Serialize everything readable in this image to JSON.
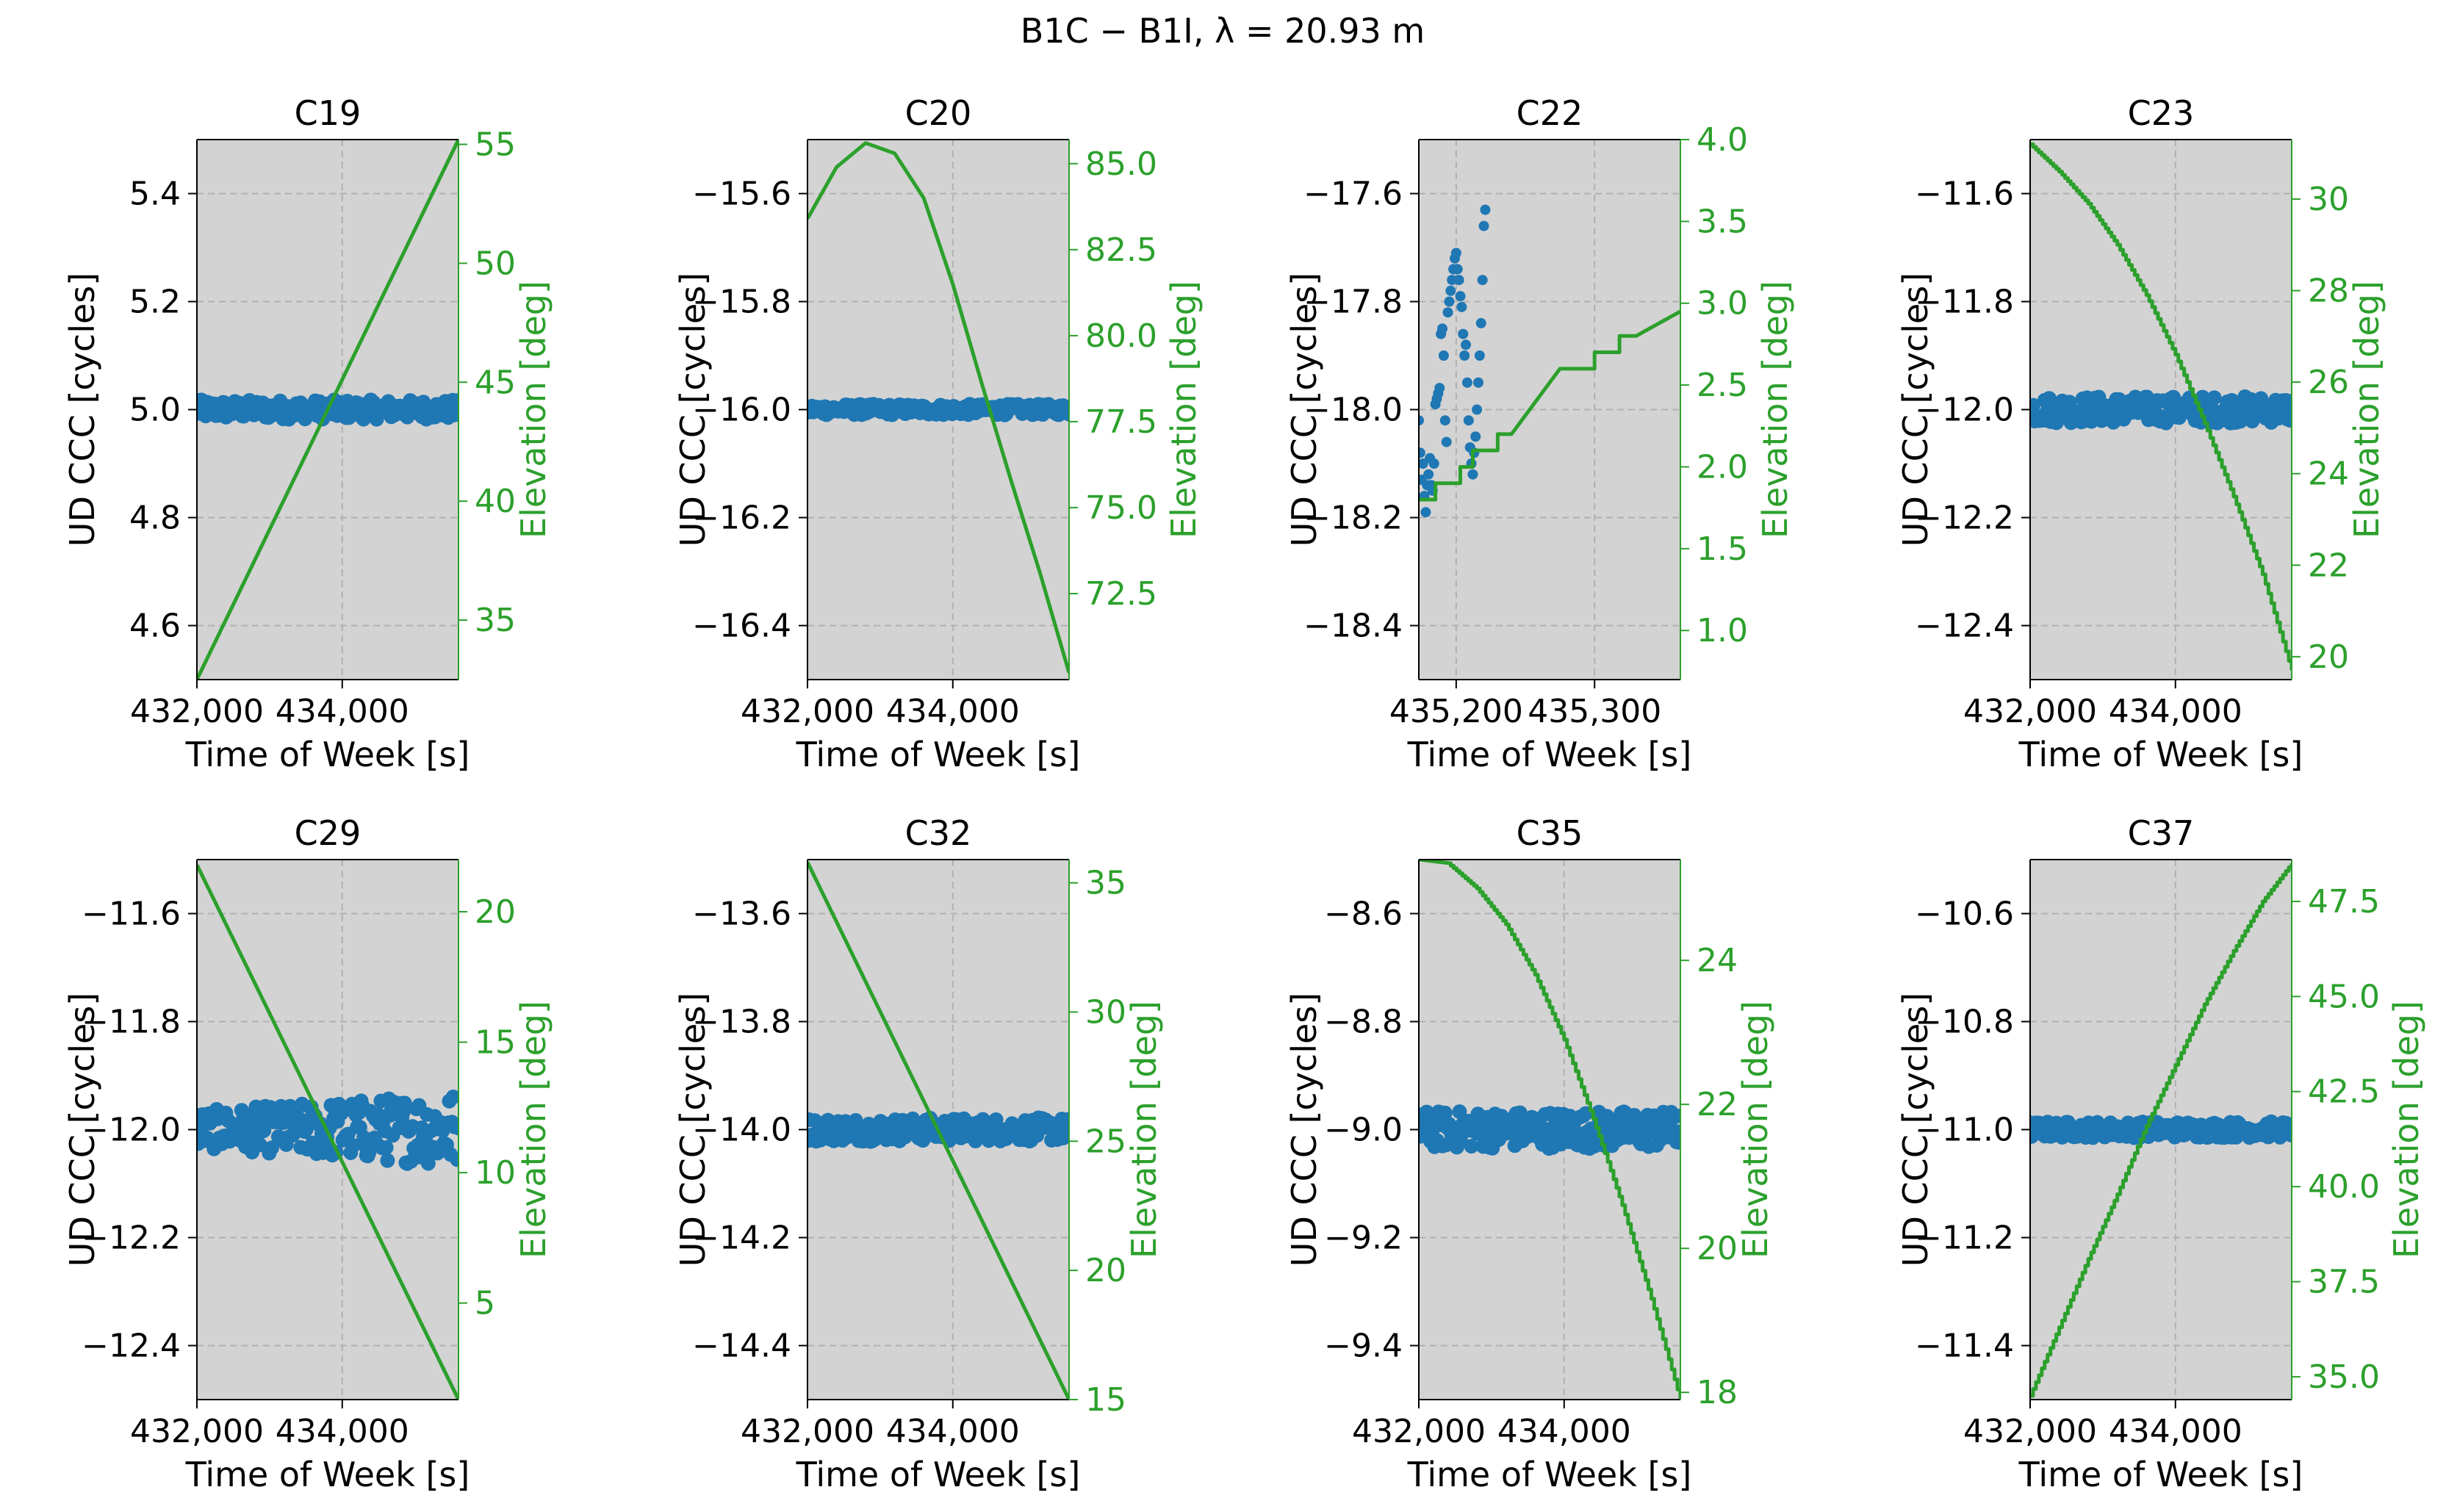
{
  "figure": {
    "title": "B1C − B1I, λ = 20.93 m",
    "colors": {
      "panel_bg": "#d3d3d3",
      "ccc": "#1f77b4",
      "elevation": "#2ca02c",
      "grid": "#b0b0b0",
      "axis_text": "#000000"
    }
  },
  "chart_data": [
    {
      "type": "scatter+line",
      "title": "C19",
      "xlabel": "Time of Week [s]",
      "ylabel": "UD CCC [cycles]",
      "y2label": "Elevation [deg]",
      "xlim": [
        432000,
        435600
      ],
      "xticks": [
        432000,
        434000
      ],
      "xtick_labels": [
        "432,000",
        "434,000"
      ],
      "ylim": [
        4.5,
        5.5
      ],
      "yticks": [
        4.6,
        4.8,
        5.0,
        5.2,
        5.4
      ],
      "ytick_labels": [
        "4.6",
        "4.8",
        "5.0",
        "5.2",
        "5.4"
      ],
      "y2lim": [
        32.5,
        55.2
      ],
      "y2ticks": [
        35,
        40,
        45,
        50,
        55
      ],
      "y2tick_labels": [
        "35",
        "40",
        "45",
        "50",
        "55"
      ],
      "ccc": {
        "center": 5.0,
        "amp": 0.018,
        "n": 180,
        "mode": "band"
      },
      "elevation": {
        "points": [
          [
            432000,
            32.5
          ],
          [
            435600,
            55.2
          ]
        ],
        "step": false
      }
    },
    {
      "type": "scatter+line",
      "title": "C20",
      "xlabel": "Time of Week [s]",
      "ylabel": "UD CCC [cycles]",
      "y2label": "Elevation [deg]",
      "xlim": [
        432000,
        435600
      ],
      "xticks": [
        432000,
        434000
      ],
      "xtick_labels": [
        "432,000",
        "434,000"
      ],
      "ylim": [
        -16.5,
        -15.5
      ],
      "yticks": [
        -16.4,
        -16.2,
        -16.0,
        -15.8,
        -15.6
      ],
      "ytick_labels": [
        "−16.4",
        "−16.2",
        "−16.0",
        "−15.8",
        "−15.6"
      ],
      "y2lim": [
        70.0,
        85.7
      ],
      "y2ticks": [
        72.5,
        75.0,
        77.5,
        80.0,
        82.5,
        85.0
      ],
      "y2tick_labels": [
        "72.5",
        "75.0",
        "77.5",
        "80.0",
        "82.5",
        "85.0"
      ],
      "ccc": {
        "center": -16.0,
        "amp": 0.01,
        "n": 180,
        "mode": "band"
      },
      "elevation": {
        "points": [
          [
            432000,
            83.4
          ],
          [
            432400,
            84.9
          ],
          [
            432800,
            85.6
          ],
          [
            433200,
            85.3
          ],
          [
            433600,
            84.0
          ],
          [
            434000,
            81.5
          ],
          [
            434400,
            78.6
          ],
          [
            434800,
            75.8
          ],
          [
            435200,
            73.1
          ],
          [
            435600,
            70.2
          ]
        ],
        "step": false
      }
    },
    {
      "type": "scatter+line",
      "title": "C22",
      "xlabel": "Time of Week [s]",
      "ylabel": "UD CCC [cycles]",
      "y2label": "Elevation [deg]",
      "xlim": [
        435173,
        435362
      ],
      "xticks": [
        435200,
        435300
      ],
      "xtick_labels": [
        "435,200",
        "435,300"
      ],
      "ylim": [
        -18.5,
        -17.5
      ],
      "yticks": [
        -18.4,
        -18.2,
        -18.0,
        -17.8,
        -17.6
      ],
      "ytick_labels": [
        "−18.4",
        "−18.2",
        "−18.0",
        "−17.8",
        "−17.6"
      ],
      "y2lim": [
        0.7,
        4.0
      ],
      "y2ticks": [
        1.0,
        1.5,
        2.0,
        2.5,
        3.0,
        3.5,
        4.0
      ],
      "y2tick_labels": [
        "1.0",
        "1.5",
        "2.0",
        "2.5",
        "3.0",
        "3.5",
        "4.0"
      ],
      "ccc": {
        "mode": "points",
        "points": [
          [
            435173,
            -18.02
          ],
          [
            435174,
            -18.08
          ],
          [
            435175,
            -18.13
          ],
          [
            435176,
            -18.1
          ],
          [
            435177,
            -18.16
          ],
          [
            435178,
            -18.19
          ],
          [
            435179,
            -18.14
          ],
          [
            435180,
            -18.12
          ],
          [
            435181,
            -18.09
          ],
          [
            435182,
            -18.14
          ],
          [
            435183,
            -18.15
          ],
          [
            435184,
            -18.1
          ],
          [
            435185,
            -17.99
          ],
          [
            435186,
            -17.98
          ],
          [
            435187,
            -17.97
          ],
          [
            435188,
            -17.96
          ],
          [
            435189,
            -17.86
          ],
          [
            435190,
            -17.85
          ],
          [
            435191,
            -17.9
          ],
          [
            435192,
            -18.02
          ],
          [
            435193,
            -18.06
          ],
          [
            435194,
            -17.82
          ],
          [
            435195,
            -17.8
          ],
          [
            435196,
            -17.78
          ],
          [
            435197,
            -17.76
          ],
          [
            435198,
            -17.74
          ],
          [
            435199,
            -17.72
          ],
          [
            435200,
            -17.71
          ],
          [
            435201,
            -17.74
          ],
          [
            435202,
            -17.76
          ],
          [
            435203,
            -17.79
          ],
          [
            435204,
            -17.81
          ],
          [
            435205,
            -17.86
          ],
          [
            435206,
            -17.9
          ],
          [
            435207,
            -17.88
          ],
          [
            435208,
            -17.95
          ],
          [
            435209,
            -18.02
          ],
          [
            435210,
            -18.07
          ],
          [
            435211,
            -18.1
          ],
          [
            435212,
            -18.12
          ],
          [
            435213,
            -18.08
          ],
          [
            435214,
            -18.05
          ],
          [
            435215,
            -18.0
          ],
          [
            435216,
            -17.95
          ],
          [
            435217,
            -17.9
          ],
          [
            435218,
            -17.84
          ],
          [
            435219,
            -17.76
          ],
          [
            435220,
            -17.66
          ],
          [
            435221,
            -17.63
          ]
        ]
      },
      "elevation": {
        "points": [
          [
            435173,
            1.8
          ],
          [
            435185,
            1.8
          ],
          [
            435185,
            1.9
          ],
          [
            435203,
            1.9
          ],
          [
            435203,
            2.0
          ],
          [
            435212,
            2.0
          ],
          [
            435212,
            2.1
          ],
          [
            435230,
            2.1
          ],
          [
            435230,
            2.2
          ],
          [
            435240,
            2.2
          ],
          [
            435275,
            2.6
          ],
          [
            435300,
            2.6
          ],
          [
            435300,
            2.7
          ],
          [
            435318,
            2.7
          ],
          [
            435318,
            2.8
          ],
          [
            435330,
            2.8
          ],
          [
            435362,
            2.95
          ]
        ],
        "step": false
      }
    },
    {
      "type": "scatter+line",
      "title": "C23",
      "xlabel": "Time of Week [s]",
      "ylabel": "UD CCC [cycles]",
      "y2label": "Elevation [deg]",
      "xlim": [
        432000,
        435600
      ],
      "xticks": [
        432000,
        434000
      ],
      "xtick_labels": [
        "432,000",
        "434,000"
      ],
      "ylim": [
        -12.5,
        -11.5
      ],
      "yticks": [
        -12.4,
        -12.2,
        -12.0,
        -11.8,
        -11.6
      ],
      "ytick_labels": [
        "−12.4",
        "−12.2",
        "−12.0",
        "−11.8",
        "−11.6"
      ],
      "y2lim": [
        19.5,
        31.3
      ],
      "y2ticks": [
        20,
        22,
        24,
        26,
        28,
        30
      ],
      "y2tick_labels": [
        "20",
        "22",
        "24",
        "26",
        "28",
        "30"
      ],
      "ccc": {
        "center": -12.0,
        "amp": 0.025,
        "n": 180,
        "mode": "band"
      },
      "elevation": {
        "points": [
          [
            432000,
            31.2
          ],
          [
            432400,
            30.6
          ],
          [
            432800,
            29.9
          ],
          [
            433200,
            29.0
          ],
          [
            433600,
            27.9
          ],
          [
            434000,
            26.6
          ],
          [
            434400,
            25.1
          ],
          [
            434800,
            23.5
          ],
          [
            435200,
            21.8
          ],
          [
            435600,
            19.7
          ]
        ],
        "step": true
      }
    },
    {
      "type": "scatter+line",
      "title": "C29",
      "xlabel": "Time of Week [s]",
      "ylabel": "UD CCC [cycles]",
      "y2label": "Elevation [deg]",
      "xlim": [
        432000,
        435600
      ],
      "xticks": [
        432000,
        434000
      ],
      "xtick_labels": [
        "432,000",
        "434,000"
      ],
      "ylim": [
        -12.5,
        -11.5
      ],
      "yticks": [
        -12.4,
        -12.2,
        -12.0,
        -11.8,
        -11.6
      ],
      "ytick_labels": [
        "−12.4",
        "−12.2",
        "−12.0",
        "−11.8",
        "−11.6"
      ],
      "y2lim": [
        1.3,
        22.0
      ],
      "y2ticks": [
        5,
        10,
        15,
        20
      ],
      "y2tick_labels": [
        "5",
        "10",
        "15",
        "20"
      ],
      "ccc": {
        "center": -12.0,
        "amp": 0.035,
        "amp_end": 0.07,
        "n": 200,
        "mode": "band"
      },
      "elevation": {
        "points": [
          [
            432000,
            21.8
          ],
          [
            435600,
            1.3
          ]
        ],
        "step": false
      }
    },
    {
      "type": "scatter+line",
      "title": "C32",
      "xlabel": "Time of Week [s]",
      "ylabel": "UD CCC [cycles]",
      "y2label": "Elevation [deg]",
      "xlim": [
        432000,
        435600
      ],
      "xticks": [
        432000,
        434000
      ],
      "xtick_labels": [
        "432,000",
        "434,000"
      ],
      "ylim": [
        -14.5,
        -13.5
      ],
      "yticks": [
        -14.4,
        -14.2,
        -14.0,
        -13.8,
        -13.6
      ],
      "ytick_labels": [
        "−14.4",
        "−14.2",
        "−14.0",
        "−13.8",
        "−13.6"
      ],
      "y2lim": [
        15.0,
        35.9
      ],
      "y2ticks": [
        15,
        20,
        25,
        30,
        35
      ],
      "y2tick_labels": [
        "15",
        "20",
        "25",
        "30",
        "35"
      ],
      "ccc": {
        "center": -14.0,
        "amp": 0.022,
        "n": 180,
        "mode": "band"
      },
      "elevation": {
        "points": [
          [
            432000,
            35.8
          ],
          [
            435600,
            15.0
          ]
        ],
        "step": false
      }
    },
    {
      "type": "scatter+line",
      "title": "C35",
      "xlabel": "Time of Week [s]",
      "ylabel": "UD CCC [cycles]",
      "y2label": "Elevation [deg]",
      "xlim": [
        432000,
        435600
      ],
      "xticks": [
        432000,
        434000
      ],
      "xtick_labels": [
        "432,000",
        "434,000"
      ],
      "ylim": [
        -9.5,
        -8.5
      ],
      "yticks": [
        -9.4,
        -9.2,
        -9.0,
        -8.8,
        -8.6
      ],
      "ytick_labels": [
        "−9.4",
        "−9.2",
        "−9.0",
        "−8.8",
        "−8.6"
      ],
      "y2lim": [
        17.9,
        25.4
      ],
      "y2ticks": [
        18,
        20,
        22,
        24
      ],
      "y2tick_labels": [
        "18",
        "20",
        "22",
        "24"
      ],
      "ccc": {
        "center": -9.0,
        "amp": 0.035,
        "n": 200,
        "mode": "band"
      },
      "elevation": {
        "points": [
          [
            432000,
            25.4
          ],
          [
            432400,
            25.35
          ],
          [
            432800,
            25.0
          ],
          [
            433200,
            24.5
          ],
          [
            433600,
            23.8
          ],
          [
            434000,
            22.9
          ],
          [
            434400,
            21.8
          ],
          [
            434800,
            20.6
          ],
          [
            435200,
            19.3
          ],
          [
            435600,
            17.9
          ]
        ],
        "step": true
      }
    },
    {
      "type": "scatter+line",
      "title": "C37",
      "xlabel": "Time of Week [s]",
      "ylabel": "UD CCC [cycles]",
      "y2label": "Elevation [deg]",
      "xlim": [
        432000,
        435600
      ],
      "xticks": [
        432000,
        434000
      ],
      "xtick_labels": [
        "432,000",
        "434,000"
      ],
      "ylim": [
        -11.5,
        -10.5
      ],
      "yticks": [
        -11.4,
        -11.2,
        -11.0,
        -10.8,
        -10.6
      ],
      "ytick_labels": [
        "−11.4",
        "−11.2",
        "−11.0",
        "−10.8",
        "−10.6"
      ],
      "y2lim": [
        34.4,
        48.6
      ],
      "y2ticks": [
        35.0,
        37.5,
        40.0,
        42.5,
        45.0,
        47.5
      ],
      "y2tick_labels": [
        "35.0",
        "37.5",
        "40.0",
        "42.5",
        "45.0",
        "47.5"
      ],
      "ccc": {
        "center": -11.0,
        "amp": 0.015,
        "n": 180,
        "mode": "band"
      },
      "elevation": {
        "points": [
          [
            432000,
            34.5
          ],
          [
            432400,
            36.3
          ],
          [
            432800,
            38.1
          ],
          [
            433200,
            39.8
          ],
          [
            433600,
            41.6
          ],
          [
            434000,
            43.2
          ],
          [
            434400,
            44.8
          ],
          [
            434800,
            46.2
          ],
          [
            435200,
            47.5
          ],
          [
            435600,
            48.5
          ]
        ],
        "step": true
      }
    }
  ]
}
